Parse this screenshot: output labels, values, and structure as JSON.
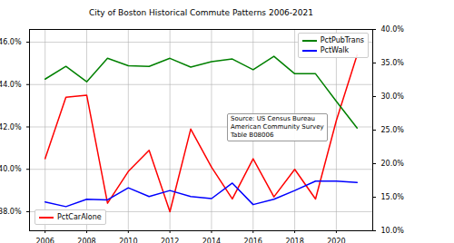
{
  "chart_data": {
    "type": "line",
    "title": "City of Boston Historical Commute Patterns 2006-2021",
    "annotation": "Source: US Census Bureau\nAmerican Community Survey\nTable B08006",
    "x": [
      2006,
      2007,
      2008,
      2009,
      2010,
      2011,
      2012,
      2013,
      2014,
      2015,
      2016,
      2017,
      2018,
      2019,
      2020,
      2021
    ],
    "xlim": [
      2005.25,
      2021.75
    ],
    "xticks": [
      2006,
      2008,
      2010,
      2012,
      2014,
      2016,
      2018,
      2020
    ],
    "ylim": [
      37.1,
      46.6
    ],
    "yticks": [
      {
        "value": 38,
        "label": "38.0%"
      },
      {
        "value": 40,
        "label": "40.0%"
      },
      {
        "value": 42,
        "label": "42.0%"
      },
      {
        "value": 44,
        "label": "44.0%"
      },
      {
        "value": 46,
        "label": "46.0%"
      }
    ],
    "y2lim": [
      10,
      40
    ],
    "y2ticks": [
      {
        "value": 10,
        "label": "10.0%"
      },
      {
        "value": 15,
        "label": "15.0%"
      },
      {
        "value": 20,
        "label": "20.0%"
      },
      {
        "value": 25,
        "label": "25.0%"
      },
      {
        "value": 30,
        "label": "30.0%"
      },
      {
        "value": 35,
        "label": "35.0%"
      },
      {
        "value": 40,
        "label": "40.0%"
      }
    ],
    "grid": true,
    "series": [
      {
        "name": "PctCarAlone",
        "color": "red",
        "values": [
          40.5,
          43.4,
          43.5,
          38.4,
          39.9,
          40.9,
          38.0,
          41.9,
          40.1,
          38.6,
          40.5,
          38.7,
          40.0,
          38.6,
          42.3,
          45.4
        ]
      },
      {
        "name": "PctPubTrans",
        "color": "green",
        "axis": "y2",
        "values": [
          32.6,
          34.5,
          32.2,
          35.7,
          34.6,
          34.5,
          35.7,
          34.4,
          35.2,
          35.6,
          34.0,
          36.0,
          33.4,
          33.4,
          29.3,
          25.3
        ]
      },
      {
        "name": "PctWalk",
        "color": "blue",
        "axis": "y2",
        "values": [
          14.3,
          13.6,
          14.7,
          14.6,
          16.4,
          15.1,
          16.0,
          15.1,
          14.8,
          17.1,
          13.9,
          14.7,
          16.0,
          17.4,
          17.4,
          17.2
        ]
      }
    ]
  }
}
